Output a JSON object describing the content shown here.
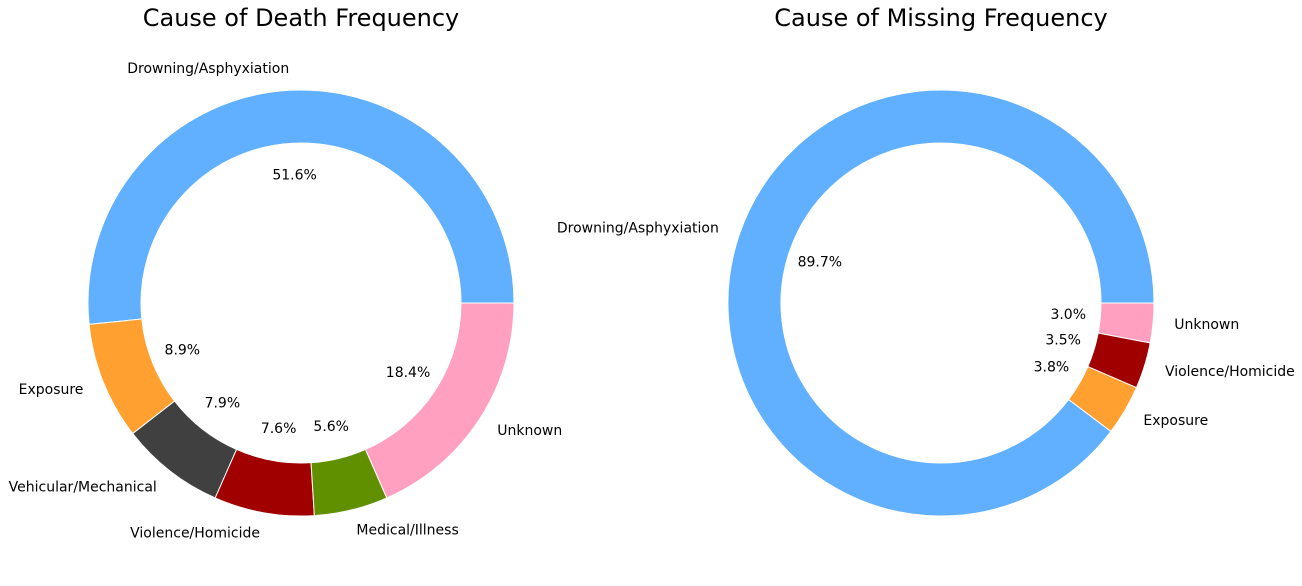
{
  "chart_data": [
    {
      "type": "pie",
      "variant": "donut",
      "title": "Cause of Death Frequency",
      "start_angle": 0,
      "direction": "counterclockwise",
      "slices": [
        {
          "label": "Drowning/Asphyxiation",
          "value": 51.6,
          "display": "51.6%",
          "color": "#60b0ff"
        },
        {
          "label": "Exposure",
          "value": 8.9,
          "display": "8.9%",
          "color": "#ffa031"
        },
        {
          "label": "Vehicular/Mechanical",
          "value": 7.9,
          "display": "7.9%",
          "color": "#404040"
        },
        {
          "label": "Violence/Homicide",
          "value": 7.6,
          "display": "7.6%",
          "color": "#a00000"
        },
        {
          "label": "Medical/Illness",
          "value": 5.6,
          "display": "5.6%",
          "color": "#609000"
        },
        {
          "label": "Unknown",
          "value": 18.4,
          "display": "18.4%",
          "color": "#ffa0c1"
        }
      ]
    },
    {
      "type": "pie",
      "variant": "donut",
      "title": "Cause of Missing Frequency",
      "start_angle": 0,
      "direction": "counterclockwise",
      "slices": [
        {
          "label": "Drowning/Asphyxiation",
          "value": 89.7,
          "display": "89.7%",
          "color": "#60b0ff"
        },
        {
          "label": "Exposure",
          "value": 3.8,
          "display": "3.8%",
          "color": "#ffa031"
        },
        {
          "label": "Violence/Homicide",
          "value": 3.5,
          "display": "3.5%",
          "color": "#a00000"
        },
        {
          "label": "Unknown",
          "value": 3.0,
          "display": "3.0%",
          "color": "#ffa0c1"
        }
      ]
    }
  ]
}
